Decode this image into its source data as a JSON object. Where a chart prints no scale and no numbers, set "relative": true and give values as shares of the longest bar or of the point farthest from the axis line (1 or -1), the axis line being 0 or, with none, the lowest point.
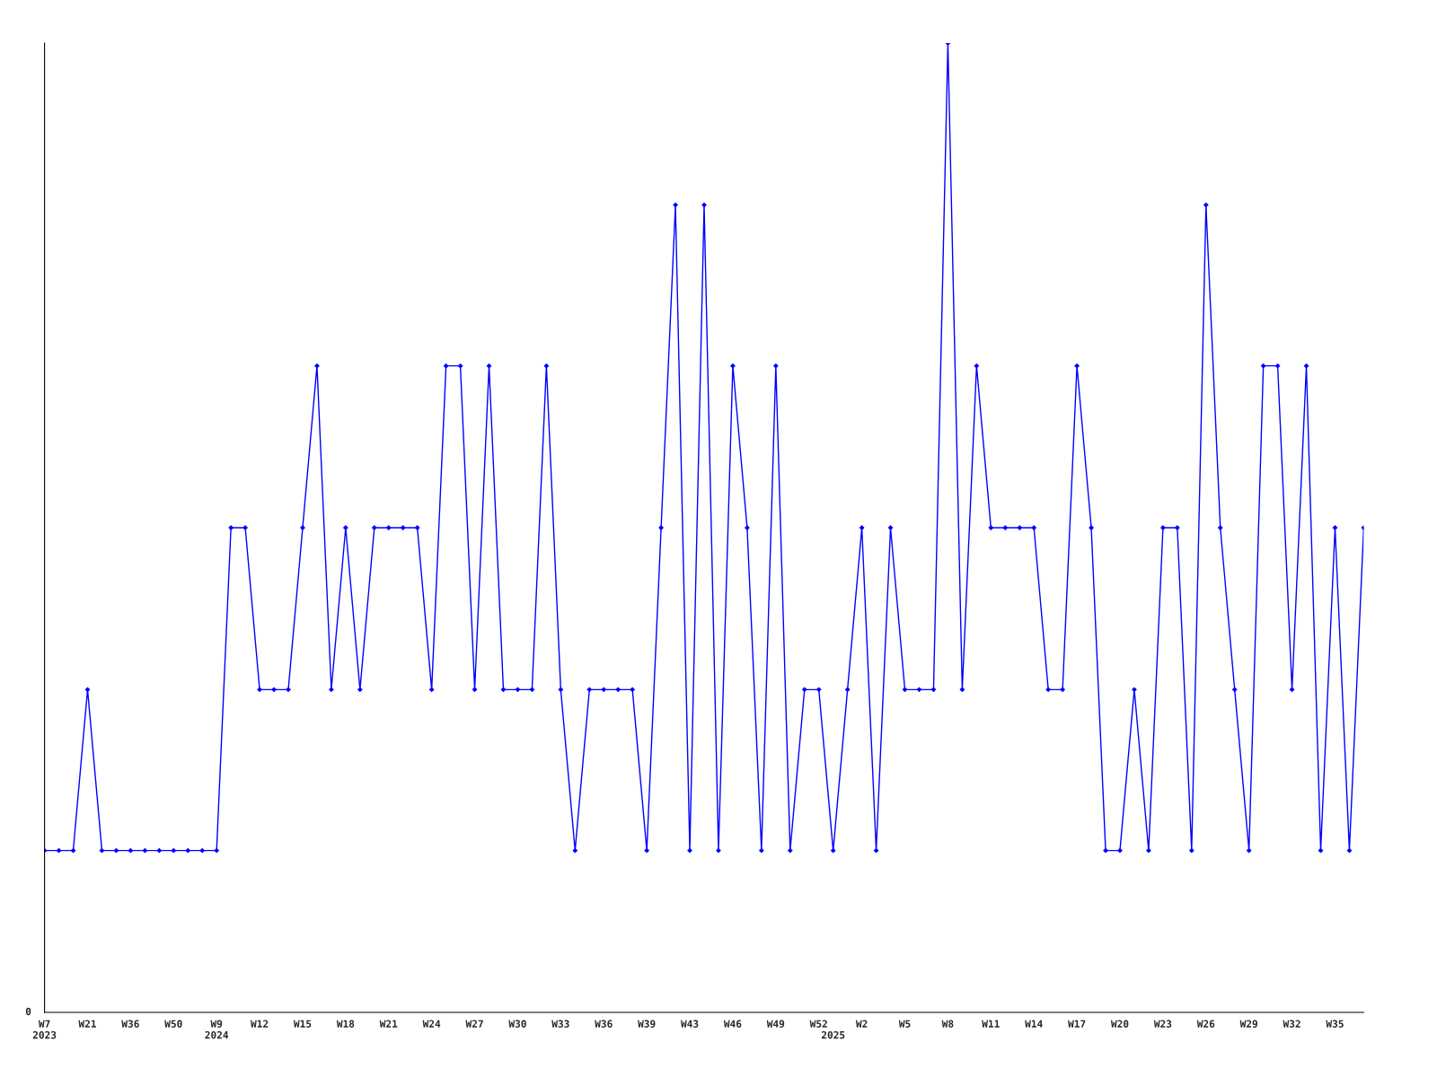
{
  "chart_data": {
    "type": "line",
    "relative": true,
    "marker": "diamond",
    "line_style": "solid",
    "grid": false,
    "legend": false,
    "annotations": [
      "0"
    ],
    "categories": [
      "W7\n2023",
      null,
      null,
      "W21",
      null,
      null,
      "W36",
      null,
      null,
      "W50",
      null,
      null,
      "W9\n2024",
      null,
      null,
      "W12",
      null,
      null,
      "W15",
      null,
      null,
      "W18",
      null,
      null,
      "W21",
      null,
      null,
      "W24",
      null,
      null,
      "W27",
      null,
      null,
      "W30",
      null,
      null,
      "W33",
      null,
      null,
      "W36",
      null,
      null,
      "W39",
      null,
      null,
      "W43",
      null,
      null,
      "W46",
      null,
      null,
      "W49",
      null,
      null,
      "W52",
      "\n2025",
      null,
      "W2",
      null,
      null,
      "W5",
      null,
      null,
      "W8",
      null,
      null,
      "W11",
      null,
      null,
      "W14",
      null,
      null,
      "W17",
      null,
      null,
      "W20",
      null,
      null,
      "W23",
      null,
      null,
      "W26",
      null,
      null,
      "W29",
      null,
      null,
      "W32",
      null,
      null,
      "W35",
      null,
      null
    ],
    "series": [
      {
        "color": "#0000ff",
        "values": [
          0.167,
          0.167,
          0.167,
          0.333,
          0.167,
          0.167,
          0.167,
          0.167,
          0.167,
          0.167,
          0.167,
          0.167,
          0.167,
          0.5,
          0.5,
          0.333,
          0.333,
          0.333,
          0.5,
          0.667,
          0.333,
          0.5,
          0.333,
          0.5,
          0.5,
          0.5,
          0.5,
          0.333,
          0.667,
          0.667,
          0.333,
          0.667,
          0.333,
          0.333,
          0.333,
          0.667,
          0.333,
          0.167,
          0.333,
          0.333,
          0.333,
          0.333,
          0.167,
          0.5,
          0.833,
          0.167,
          0.833,
          0.167,
          0.667,
          0.5,
          0.167,
          0.667,
          0.167,
          0.333,
          0.333,
          0.167,
          0.333,
          0.5,
          0.167,
          0.5,
          0.333,
          0.333,
          0.333,
          1,
          0.333,
          0.667,
          0.5,
          0.5,
          0.5,
          0.5,
          0.333,
          0.333,
          0.667,
          0.5,
          0.167,
          0.167,
          0.333,
          0.167,
          0.5,
          0.5,
          0.167,
          0.833,
          0.5,
          0.333,
          0.167,
          0.667,
          0.667,
          0.333,
          0.667,
          0.167,
          0.5,
          0.167,
          0.5
        ]
      }
    ]
  }
}
